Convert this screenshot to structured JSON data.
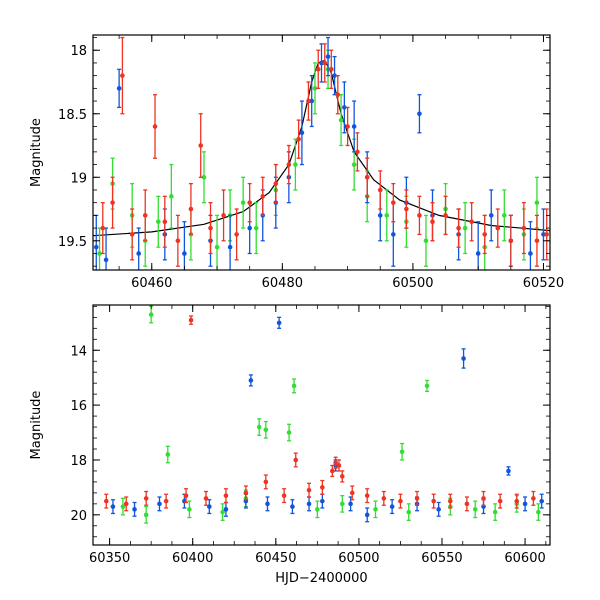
{
  "colors": {
    "green": "#33dd33",
    "blue": "#1155dd",
    "red": "#ee3322",
    "model": "#000000"
  },
  "chart_data": [
    {
      "type": "scatter",
      "title": "",
      "xlabel": "",
      "ylabel": "Magnitude",
      "xlim": [
        60451,
        60521
      ],
      "ylim": [
        19.73,
        17.88
      ],
      "y_inverted": true,
      "xticks": [
        "60460",
        "60480",
        "60500",
        "60520"
      ],
      "yticks": [
        "18",
        "18.5",
        "19",
        "19.5"
      ],
      "xtick_values": [
        60460,
        60480,
        60500,
        60520
      ],
      "ytick_values": [
        18,
        18.5,
        19,
        19.5
      ],
      "model_curve": {
        "x": [
          60451,
          60460,
          60468,
          60474,
          60478,
          60481,
          60483,
          60484.5,
          60485.5,
          60486.5,
          60487.5,
          60489,
          60491,
          60494,
          60498,
          60504,
          60512,
          60521
        ],
        "y": [
          19.46,
          19.43,
          19.37,
          19.27,
          19.12,
          18.9,
          18.6,
          18.25,
          18.1,
          18.08,
          18.18,
          18.5,
          18.8,
          19.02,
          19.18,
          19.3,
          19.38,
          19.42
        ]
      },
      "series": [
        {
          "name": "",
          "color_key": "green",
          "x": [
            60452,
            60454,
            60457,
            60459,
            60461,
            60463,
            60466,
            60468,
            60470,
            60472,
            60474,
            60476,
            60479,
            60482,
            60485,
            60487,
            60489,
            60491,
            60493,
            60496,
            60499,
            60502,
            60505,
            60508,
            60511,
            60514,
            60517,
            60519
          ],
          "y": [
            19.6,
            19.05,
            19.3,
            19.5,
            19.35,
            19.15,
            19.45,
            19.0,
            19.55,
            19.3,
            19.2,
            19.4,
            19.1,
            18.9,
            18.3,
            18.15,
            18.55,
            18.9,
            19.15,
            19.3,
            19.35,
            19.5,
            19.25,
            19.4,
            19.55,
            19.3,
            19.45,
            19.2
          ],
          "err": [
            0.2,
            0.2,
            0.25,
            0.2,
            0.2,
            0.25,
            0.2,
            0.2,
            0.25,
            0.2,
            0.2,
            0.2,
            0.2,
            0.2,
            0.2,
            0.15,
            0.2,
            0.2,
            0.2,
            0.2,
            0.2,
            0.2,
            0.2,
            0.2,
            0.25,
            0.2,
            0.2,
            0.2
          ]
        },
        {
          "name": "",
          "color_key": "blue",
          "x": [
            60451.5,
            60453,
            60455,
            60458,
            60462,
            60465,
            60469,
            60472,
            60475,
            60477,
            60479,
            60481,
            60483,
            60484.5,
            60486,
            60487,
            60488,
            60489.5,
            60491,
            60493,
            60495,
            60497,
            60499,
            60501,
            60503,
            60507,
            60510,
            60512,
            60515,
            60518,
            60520
          ],
          "y": [
            19.55,
            19.65,
            18.3,
            19.6,
            19.45,
            19.6,
            19.5,
            19.55,
            19.4,
            19.3,
            19.2,
            19.0,
            18.65,
            18.4,
            18.1,
            18.05,
            18.2,
            18.45,
            18.6,
            19.0,
            19.3,
            19.45,
            19.2,
            18.5,
            19.3,
            19.45,
            19.6,
            19.3,
            19.5,
            19.6,
            19.45
          ],
          "err": [
            0.25,
            0.25,
            0.15,
            0.2,
            0.2,
            0.25,
            0.2,
            0.25,
            0.2,
            0.2,
            0.2,
            0.2,
            0.25,
            0.2,
            0.15,
            0.15,
            0.15,
            0.2,
            0.2,
            0.2,
            0.2,
            0.25,
            0.2,
            0.15,
            0.2,
            0.2,
            0.25,
            0.2,
            0.2,
            0.25,
            0.2
          ]
        },
        {
          "name": "",
          "color_key": "red",
          "x": [
            60452.5,
            60454,
            60455.5,
            60457,
            60459,
            60460.5,
            60462,
            60464,
            60466,
            60467.5,
            60469,
            60471,
            60473,
            60475,
            60477,
            60479,
            60481,
            60482.5,
            60484,
            60485.5,
            60486.5,
            60487.5,
            60488.5,
            60490,
            60491.5,
            60493,
            60495,
            60497,
            60499,
            60501,
            60503,
            60505,
            60507,
            60509,
            60511,
            60513,
            60515,
            60517,
            60519,
            60520.5
          ],
          "y": [
            19.4,
            19.2,
            18.2,
            19.45,
            19.3,
            18.6,
            19.35,
            19.5,
            19.25,
            18.75,
            19.4,
            19.3,
            19.45,
            19.2,
            19.15,
            19.05,
            18.9,
            18.7,
            18.4,
            18.15,
            18.1,
            18.15,
            18.35,
            18.6,
            18.8,
            19.0,
            19.1,
            19.2,
            19.25,
            19.3,
            19.35,
            19.3,
            19.4,
            19.35,
            19.45,
            19.4,
            19.5,
            19.4,
            19.5,
            19.45
          ],
          "err": [
            0.2,
            0.2,
            0.3,
            0.2,
            0.2,
            0.25,
            0.2,
            0.2,
            0.2,
            0.25,
            0.2,
            0.2,
            0.2,
            0.15,
            0.15,
            0.15,
            0.15,
            0.15,
            0.15,
            0.15,
            0.15,
            0.15,
            0.15,
            0.15,
            0.15,
            0.15,
            0.15,
            0.15,
            0.15,
            0.15,
            0.15,
            0.15,
            0.15,
            0.15,
            0.15,
            0.15,
            0.2,
            0.2,
            0.2,
            0.2
          ]
        }
      ]
    },
    {
      "type": "scatter",
      "title": "",
      "xlabel": "HJD−2400000",
      "ylabel": "Magnitude",
      "xlim": [
        60340,
        60615
      ],
      "ylim": [
        21.1,
        12.35
      ],
      "y_inverted": true,
      "xticks": [
        "60350",
        "60400",
        "60450",
        "60500",
        "60550",
        "60600"
      ],
      "yticks": [
        "14",
        "16",
        "18",
        "20"
      ],
      "xtick_values": [
        60350,
        60400,
        60450,
        60500,
        60550,
        60600
      ],
      "ytick_values": [
        14,
        16,
        18,
        20
      ],
      "series": [
        {
          "name": "",
          "color_key": "green",
          "x": [
            60358,
            60372,
            60375,
            60385,
            60398,
            60418,
            60432,
            60440,
            60444,
            60458,
            60461,
            60475,
            60490,
            60510,
            60526,
            60530,
            60541,
            60555,
            60570,
            60582,
            60595,
            60608
          ],
          "y": [
            19.7,
            20.0,
            12.7,
            17.8,
            19.8,
            19.9,
            19.4,
            16.8,
            16.9,
            17.0,
            15.3,
            19.8,
            19.6,
            19.8,
            17.7,
            19.9,
            15.3,
            19.7,
            19.8,
            19.9,
            19.6,
            19.9
          ],
          "err": [
            0.3,
            0.3,
            0.3,
            0.3,
            0.3,
            0.3,
            0.3,
            0.3,
            0.3,
            0.3,
            0.25,
            0.3,
            0.3,
            0.3,
            0.3,
            0.3,
            0.2,
            0.3,
            0.3,
            0.3,
            0.3,
            0.3
          ]
        },
        {
          "name": "",
          "color_key": "blue",
          "x": [
            60352,
            60365,
            60380,
            60395,
            60410,
            60420,
            60432,
            60435,
            60445,
            60452,
            60460,
            60470,
            60478,
            60486,
            60495,
            60505,
            60520,
            60535,
            60548,
            60563,
            60575,
            60590,
            60600,
            60610
          ],
          "y": [
            19.7,
            19.8,
            19.6,
            19.5,
            19.7,
            19.8,
            19.5,
            15.1,
            19.6,
            13.0,
            19.7,
            19.6,
            19.5,
            18.2,
            19.6,
            20.0,
            19.7,
            19.6,
            19.8,
            14.3,
            19.7,
            18.4,
            19.6,
            19.5
          ],
          "err": [
            0.25,
            0.25,
            0.25,
            0.25,
            0.25,
            0.25,
            0.25,
            0.2,
            0.25,
            0.2,
            0.25,
            0.25,
            0.25,
            0.2,
            0.25,
            0.25,
            0.25,
            0.25,
            0.25,
            0.35,
            0.25,
            0.15,
            0.25,
            0.25
          ]
        },
        {
          "name": "",
          "color_key": "red",
          "x": [
            60348,
            60360,
            60372,
            60384,
            60396,
            60399,
            60408,
            60420,
            60432,
            60444,
            60455,
            60462,
            60470,
            60478,
            60484,
            60486,
            60488,
            60490,
            60496,
            60505,
            60515,
            60525,
            60535,
            60545,
            60555,
            60565,
            60575,
            60585,
            60595,
            60605
          ],
          "y": [
            19.5,
            19.6,
            19.4,
            19.5,
            19.3,
            12.9,
            19.4,
            19.3,
            19.2,
            18.8,
            19.3,
            18.0,
            19.1,
            19.0,
            18.4,
            18.1,
            18.2,
            18.6,
            19.2,
            19.3,
            19.4,
            19.5,
            19.4,
            19.5,
            19.5,
            19.6,
            19.4,
            19.5,
            19.5,
            19.4
          ],
          "err": [
            0.25,
            0.25,
            0.25,
            0.25,
            0.25,
            0.15,
            0.25,
            0.25,
            0.25,
            0.25,
            0.25,
            0.25,
            0.25,
            0.25,
            0.2,
            0.2,
            0.2,
            0.2,
            0.25,
            0.25,
            0.25,
            0.25,
            0.25,
            0.25,
            0.25,
            0.25,
            0.25,
            0.25,
            0.25,
            0.25
          ]
        }
      ]
    }
  ]
}
